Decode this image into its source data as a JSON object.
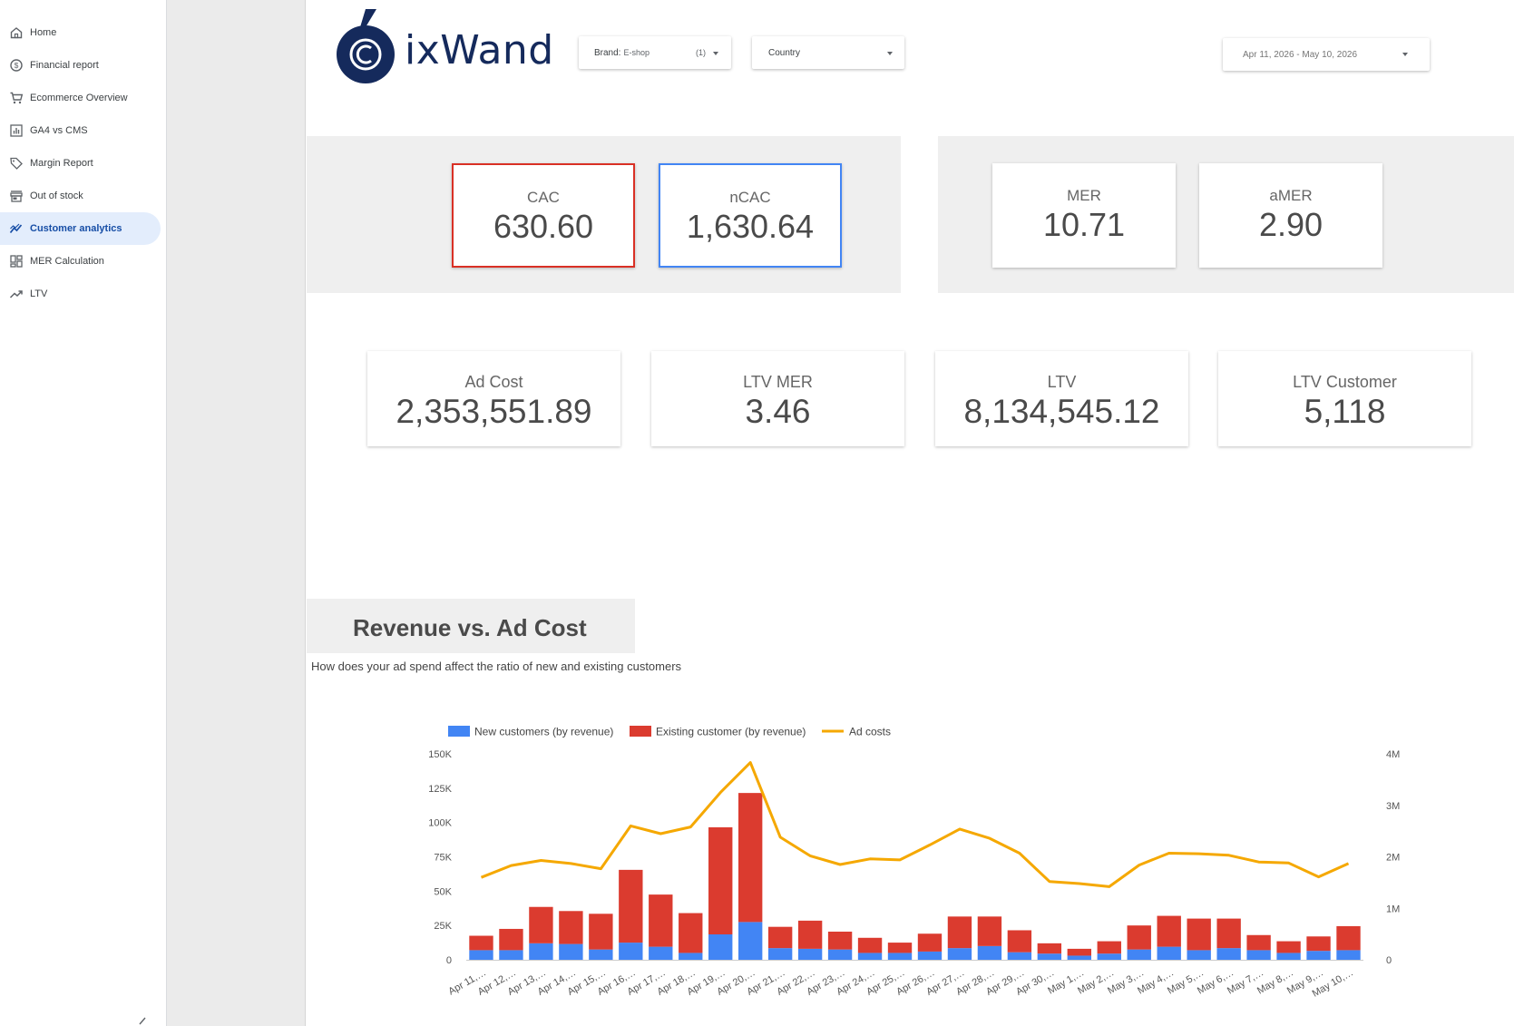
{
  "sidebar": {
    "items": [
      {
        "label": "Home",
        "icon": "home-icon",
        "active": false
      },
      {
        "label": "Financial report",
        "icon": "dollar-circle-icon",
        "active": false
      },
      {
        "label": "Ecommerce Overview",
        "icon": "cart-icon",
        "active": false
      },
      {
        "label": "GA4 vs CMS",
        "icon": "bar-chart-icon",
        "active": false
      },
      {
        "label": "Margin Report",
        "icon": "tag-icon",
        "active": false
      },
      {
        "label": "Out of stock",
        "icon": "store-icon",
        "active": false
      },
      {
        "label": "Customer analytics",
        "icon": "analytics-line-icon",
        "active": true
      },
      {
        "label": "MER Calculation",
        "icon": "dashboard-grid-icon",
        "active": false
      },
      {
        "label": "LTV",
        "icon": "trending-up-icon",
        "active": false
      }
    ]
  },
  "header": {
    "logo_text": "ixWand",
    "brand_filter": {
      "label": "Brand:",
      "value": "E-shop",
      "count": "(1)"
    },
    "country_filter": {
      "label": "Country"
    },
    "date_range": "Apr 11, 2026 - May 10, 2026"
  },
  "kpis_top": [
    {
      "label": "CAC",
      "value": "630.60",
      "border": "#d93025"
    },
    {
      "label": "nCAC",
      "value": "1,630.64",
      "border": "#4285f4"
    },
    {
      "label": "MER",
      "value": "10.71",
      "border": ""
    },
    {
      "label": "aMER",
      "value": "2.90",
      "border": ""
    }
  ],
  "kpis_bottom": [
    {
      "label": "Ad Cost",
      "value": "2,353,551.89"
    },
    {
      "label": "LTV MER",
      "value": "3.46"
    },
    {
      "label": "LTV",
      "value": "8,134,545.12"
    },
    {
      "label": "LTV Customer",
      "value": "5,118"
    }
  ],
  "section": {
    "title": "Revenue vs. Ad Cost",
    "subtitle": "How does your ad spend affect the ratio of new and existing customers"
  },
  "colors": {
    "new": "#4285f4",
    "existing": "#db3b2f",
    "adcost": "#f5a800"
  },
  "chart_data": {
    "type": "bar",
    "categories": [
      "Apr 11,…",
      "Apr 12,…",
      "Apr 13,…",
      "Apr 14,…",
      "Apr 15,…",
      "Apr 16,…",
      "Apr 17,…",
      "Apr 18,…",
      "Apr 19,…",
      "Apr 20,…",
      "Apr 21,…",
      "Apr 22,…",
      "Apr 23,…",
      "Apr 24,…",
      "Apr 25,…",
      "Apr 26,…",
      "Apr 27,…",
      "Apr 28,…",
      "Apr 29,…",
      "Apr 30,…",
      "May 1,…",
      "May 2,…",
      "May 3,…",
      "May 4,…",
      "May 5,…",
      "May 6,…",
      "May 7,…",
      "May 8,…",
      "May 9,…",
      "May 10,…"
    ],
    "series": [
      {
        "name": "New customers (by revenue)",
        "type": "bar",
        "stack": "revenue",
        "axis": "left",
        "values": [
          7000,
          7000,
          12000,
          11500,
          7500,
          12500,
          9500,
          5000,
          18500,
          27500,
          8500,
          8000,
          7500,
          5000,
          5000,
          6000,
          8500,
          10000,
          5500,
          4500,
          3000,
          4500,
          7500,
          9500,
          7000,
          8500,
          7000,
          5000,
          6500,
          7000
        ]
      },
      {
        "name": "Existing customer (by revenue)",
        "type": "bar",
        "stack": "revenue",
        "axis": "left",
        "values": [
          10500,
          15500,
          26500,
          24000,
          26000,
          53000,
          38000,
          29000,
          78000,
          94000,
          15500,
          20500,
          13000,
          11000,
          7500,
          13000,
          23000,
          21500,
          16000,
          7500,
          5000,
          9000,
          17500,
          22500,
          23000,
          21500,
          11000,
          8500,
          10500,
          17500
        ]
      },
      {
        "name": "Ad costs",
        "type": "line",
        "axis": "right",
        "values": [
          1600000,
          1830000,
          1930000,
          1870000,
          1770000,
          2600000,
          2450000,
          2580000,
          3250000,
          3830000,
          2380000,
          2020000,
          1850000,
          1960000,
          1940000,
          2230000,
          2540000,
          2360000,
          2070000,
          1520000,
          1480000,
          1420000,
          1840000,
          2070000,
          2060000,
          2030000,
          1900000,
          1880000,
          1610000,
          1870000
        ]
      }
    ],
    "ylim_left": [
      0,
      150000
    ],
    "yticks_left": [
      "0",
      "25K",
      "50K",
      "75K",
      "100K",
      "125K",
      "150K"
    ],
    "ylim_right": [
      0,
      4000000
    ],
    "yticks_right": [
      "0",
      "1M",
      "2M",
      "3M",
      "4M"
    ],
    "legend_position": "top-left"
  }
}
